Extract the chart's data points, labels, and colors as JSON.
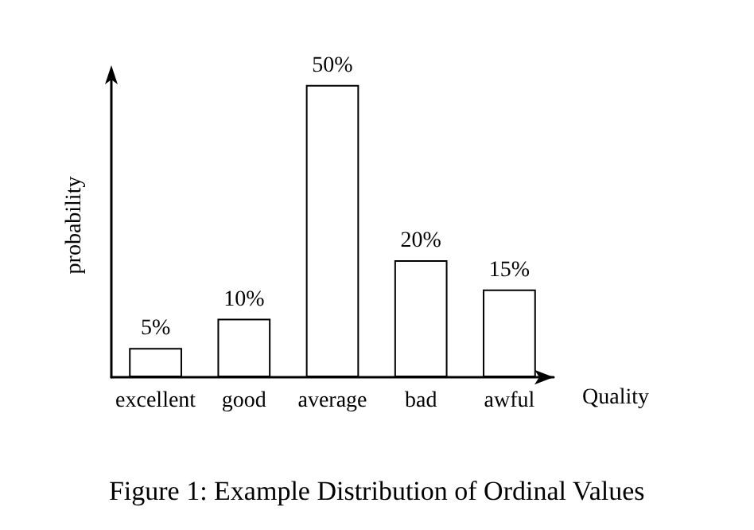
{
  "chart_data": {
    "type": "bar",
    "categories": [
      "excellent",
      "good",
      "average",
      "bad",
      "awful"
    ],
    "values": [
      5,
      10,
      50,
      20,
      15
    ],
    "value_labels": [
      "5%",
      "10%",
      "50%",
      "20%",
      "15%"
    ],
    "color": "#ffffff",
    "xlabel": "Quality",
    "ylabel": "probability",
    "tick_labels": "x",
    "annotations": [
      "Figure 1: Example Distribution of Ordinal Values"
    ]
  }
}
